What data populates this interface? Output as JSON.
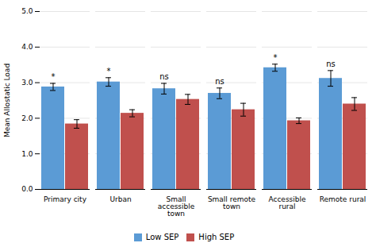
{
  "chart_data": {
    "type": "bar",
    "categories": [
      "Primary city",
      "Urban",
      "Small accessible town",
      "Small remote town",
      "Accessible rural",
      "Remote rural"
    ],
    "series": [
      {
        "name": "Low SEP",
        "color": "#5B9BD5",
        "values": [
          2.88,
          3.02,
          2.83,
          2.7,
          3.42,
          3.12
        ],
        "errors": [
          0.1,
          0.12,
          0.15,
          0.15,
          0.1,
          0.22
        ]
      },
      {
        "name": "High SEP",
        "color": "#C0504D",
        "values": [
          1.84,
          2.14,
          2.53,
          2.24,
          1.93,
          2.4
        ],
        "errors": [
          0.12,
          0.1,
          0.14,
          0.18,
          0.08,
          0.18
        ]
      }
    ],
    "annotations": [
      "*",
      "*",
      "ns",
      "ns",
      "*",
      "ns"
    ],
    "ylabel": "Mean Allostatic Load",
    "ylim": [
      0,
      5
    ],
    "yticks": [
      0,
      1,
      2,
      3,
      4,
      5
    ],
    "grid": true,
    "legend": "bottom"
  }
}
